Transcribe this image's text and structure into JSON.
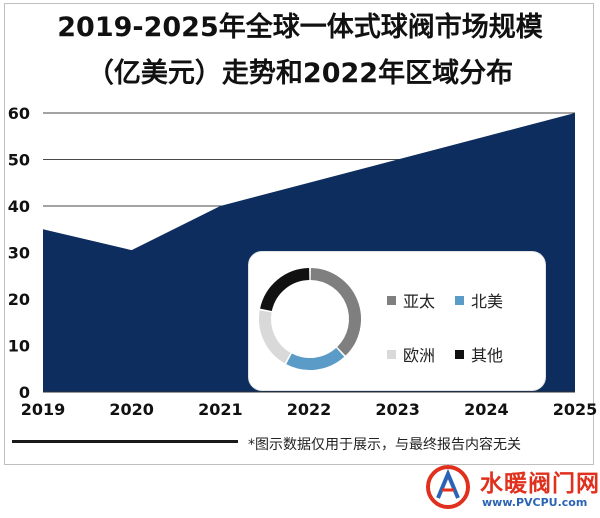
{
  "title_line1": "2019-2025年全球一体式球阀市场规模",
  "title_line2": "（亿美元）走势和2022年区域分布",
  "disclaimer": "*图示数据仅用于展示，与最终报告内容无关",
  "brand": {
    "name": "水暖阀门网",
    "url": "www.PVCPU.com"
  },
  "colors": {
    "area": "#0d2d5e",
    "grid": "#4a4a4a",
    "brand_red": "#e0301e",
    "brand_blue": "#2b63b5"
  },
  "chart_data": [
    {
      "type": "area",
      "title": "2019-2025年全球一体式球阀市场规模（亿美元）走势",
      "x": [
        "2019",
        "2020",
        "2021",
        "2022",
        "2023",
        "2024",
        "2025"
      ],
      "values": [
        35,
        30.5,
        40,
        45,
        50,
        55,
        60
      ],
      "ylim": [
        0,
        60
      ],
      "yticks": [
        0,
        10,
        20,
        30,
        40,
        50,
        60
      ],
      "grid": true,
      "color": "#0d2d5e"
    },
    {
      "type": "pie",
      "variant": "donut",
      "title": "2022年区域分布",
      "legend_position": "right",
      "slices": [
        {
          "name": "亚太",
          "value": 38,
          "color": "#7f7f7f"
        },
        {
          "name": "北美",
          "value": 20,
          "color": "#5b9bc8"
        },
        {
          "name": "欧洲",
          "value": 20,
          "color": "#d9d9d9"
        },
        {
          "name": "其他",
          "value": 22,
          "color": "#111111"
        }
      ]
    }
  ]
}
